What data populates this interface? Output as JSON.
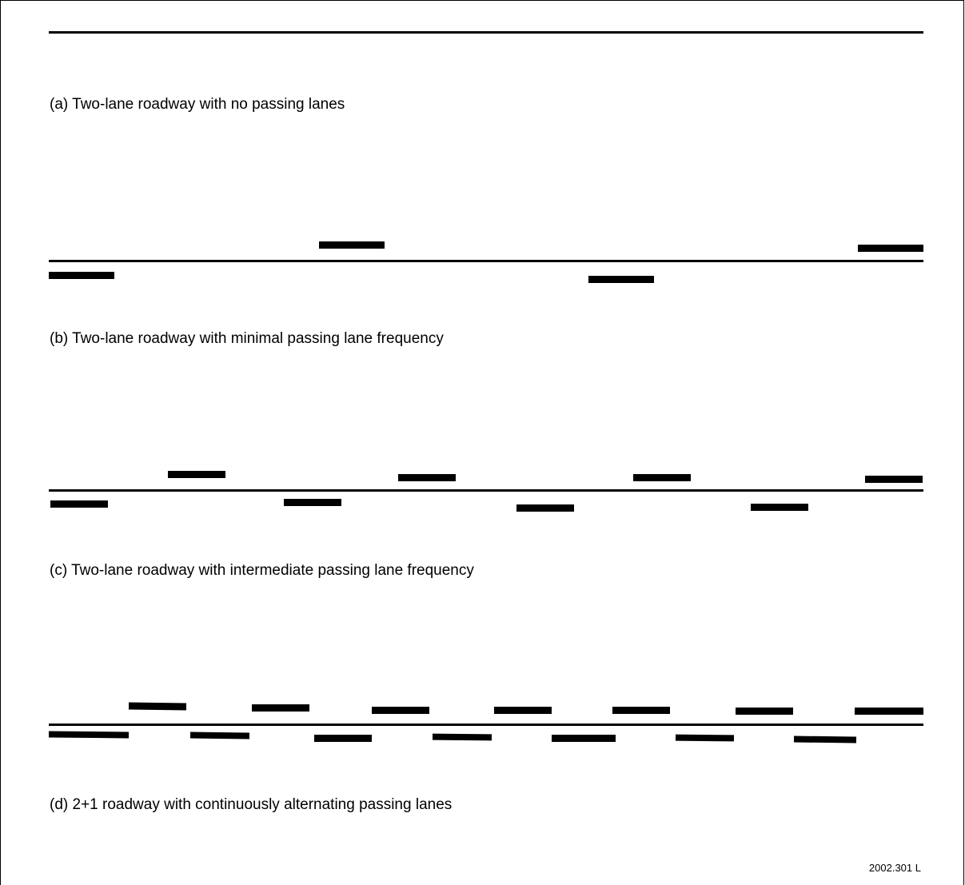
{
  "diagram": {
    "panels": [
      {
        "caption": "(a) Two-lane roadway with no passing lanes"
      },
      {
        "caption": "(b) Two-lane roadway with minimal passing lane frequency"
      },
      {
        "caption": "(c) Two-lane roadway with intermediate passing lane frequency"
      },
      {
        "caption": "(d) 2+1 roadway with continuously alternating passing lanes"
      }
    ],
    "figure_id": "2002.301 L",
    "colors": {
      "ink": "#000000",
      "background": "#ffffff"
    }
  }
}
